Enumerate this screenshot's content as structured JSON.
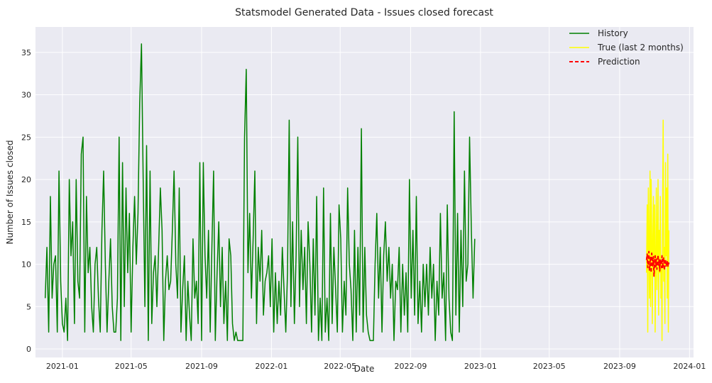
{
  "chart_data": {
    "type": "line",
    "title": "Statsmodel Generated Data - Issues closed forecast",
    "xlabel": "Date",
    "ylabel": "Number of Issues closed",
    "xlim": [
      "2020-11-15",
      "2024-01-08"
    ],
    "ylim": [
      -1,
      38
    ],
    "grid": true,
    "legend_position": "top-right",
    "x_ticks": [
      "2021-01",
      "2021-05",
      "2021-09",
      "2022-01",
      "2022-05",
      "2022-09",
      "2023-01",
      "2023-05",
      "2023-09",
      "2024-01"
    ],
    "y_ticks": [
      0,
      5,
      10,
      15,
      20,
      25,
      30,
      35
    ],
    "series": [
      {
        "name": "History",
        "color": "#008000",
        "style": "solid",
        "x_start": "2020-12-02",
        "step_days": 3,
        "values": [
          6,
          12,
          2,
          18,
          6,
          10,
          11,
          2,
          21,
          8,
          3,
          2,
          6,
          1,
          20,
          11,
          15,
          3,
          20,
          8,
          6,
          23,
          25,
          2,
          18,
          9,
          12,
          5,
          2,
          10,
          12,
          6,
          2,
          14,
          21,
          10,
          2,
          8,
          13,
          5,
          2,
          2,
          6,
          25,
          1,
          22,
          5,
          19,
          9,
          16,
          2,
          12,
          18,
          10,
          16,
          29,
          36,
          20,
          5,
          24,
          1,
          21,
          3,
          9,
          11,
          5,
          12,
          19,
          14,
          1,
          8,
          11,
          7,
          8,
          14,
          21,
          10,
          6,
          19,
          2,
          7,
          11,
          1,
          8,
          4,
          1,
          13,
          6,
          8,
          3,
          22,
          1,
          22,
          11,
          6,
          14,
          2,
          12,
          21,
          1,
          9,
          15,
          5,
          12,
          3,
          8,
          1,
          13,
          11,
          3,
          1,
          2,
          1,
          1,
          1,
          1,
          25,
          33,
          9,
          16,
          6,
          13,
          21,
          3,
          12,
          8,
          14,
          4,
          8,
          9,
          11,
          5,
          13,
          2,
          9,
          3,
          8,
          4,
          12,
          7,
          2,
          9,
          27,
          5,
          15,
          3,
          11,
          25,
          5,
          14,
          7,
          12,
          3,
          15,
          10,
          2,
          13,
          4,
          18,
          1,
          6,
          1,
          19,
          2,
          6,
          1,
          16,
          3,
          12,
          7,
          2,
          17,
          13,
          2,
          8,
          4,
          19,
          10,
          7,
          1,
          14,
          2,
          12,
          4,
          26,
          2,
          12,
          4,
          2,
          1,
          1,
          1,
          10,
          16,
          6,
          12,
          2,
          11,
          15,
          8,
          12,
          6,
          10,
          1,
          8,
          7,
          12,
          2,
          10,
          4,
          9,
          2,
          20,
          6,
          14,
          4,
          18,
          3,
          8,
          2,
          10,
          5,
          10,
          4,
          12,
          6,
          10,
          1,
          8,
          4,
          16,
          6,
          9,
          1,
          17,
          6,
          2,
          1,
          28,
          4,
          16,
          2,
          14,
          5,
          21,
          8,
          10,
          25,
          14,
          6,
          13
        ]
      },
      {
        "name": "True (last 2 months)",
        "color": "#ffff00",
        "style": "solid",
        "x_start": "2023-10-18",
        "step_days": 1,
        "values": [
          9,
          17,
          2,
          19,
          12,
          6,
          21,
          5,
          20,
          14,
          3,
          13,
          18,
          9,
          17,
          2,
          11,
          19,
          7,
          12,
          20,
          4,
          14,
          9,
          18,
          6,
          10,
          1,
          16,
          27,
          8,
          12,
          3,
          22,
          11,
          19,
          6,
          23,
          2,
          14
        ]
      },
      {
        "name": "Prediction",
        "color": "#ff0000",
        "style": "dashed",
        "x_start": "2023-10-18",
        "step_days": 1,
        "values": [
          10.5,
          11.2,
          9.6,
          10.8,
          11.5,
          9.3,
          10.1,
          10.9,
          9.0,
          11.3,
          10.4,
          9.8,
          10.9,
          8.6,
          10.2,
          11.0,
          9.7,
          10.6,
          9.4,
          10.3,
          11.1,
          9.9,
          10.7,
          9.2,
          10.5,
          10.0,
          9.6,
          11.0,
          9.5,
          10.4,
          10.8,
          9.3,
          10.2,
          10.6,
          9.8,
          10.1,
          10.4,
          9.7,
          10.3,
          10.0
        ]
      }
    ]
  }
}
